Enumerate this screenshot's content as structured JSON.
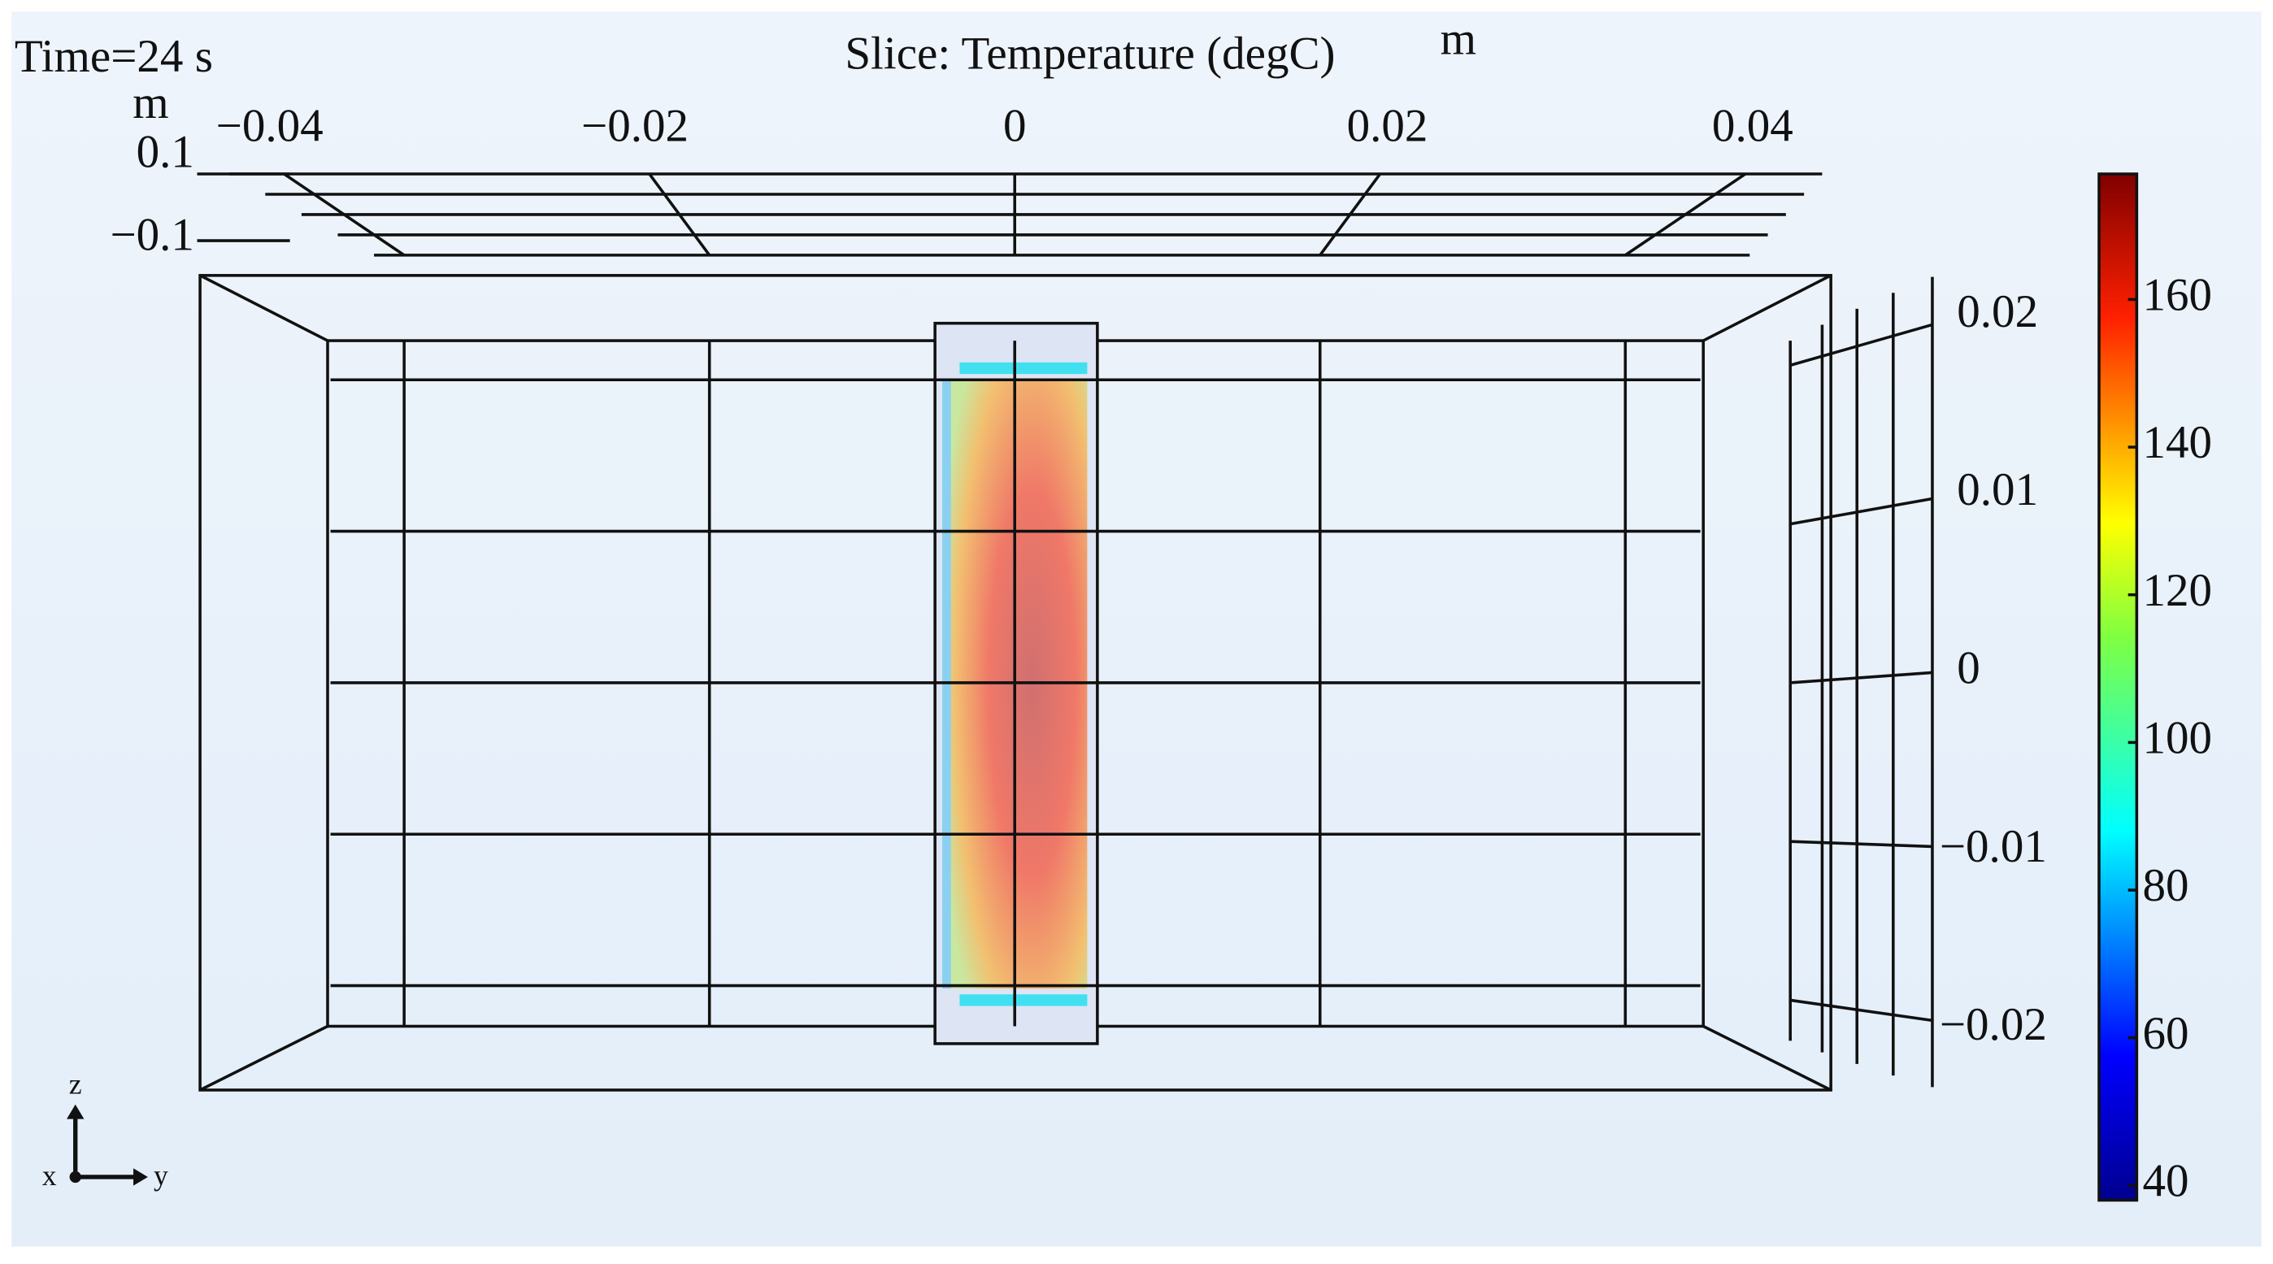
{
  "chart_data": {
    "type": "slice",
    "title": "Slice: Temperature (degC)",
    "time_label": "Time=24 s",
    "y_unit": "m",
    "x_unit": "m",
    "yticks": [
      {
        "value": -0.04,
        "label": "−0.04"
      },
      {
        "value": -0.02,
        "label": "−0.02"
      },
      0,
      0.02,
      0.04
    ],
    "xticks": [
      0.1,
      {
        "value": -0.1,
        "label": "−0.1"
      }
    ],
    "zticks": [
      0.02,
      0.01,
      0,
      {
        "value": -0.01,
        "label": "−0.01"
      },
      {
        "value": -0.02,
        "label": "−0.02"
      }
    ],
    "clim": [
      38,
      177
    ],
    "cticks": [
      40,
      60,
      80,
      100,
      120,
      140,
      160
    ],
    "triad": [
      "z",
      "x",
      "y"
    ]
  }
}
